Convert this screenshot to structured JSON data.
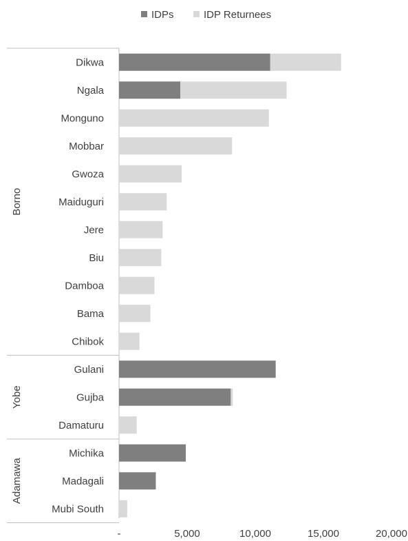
{
  "chart_data": {
    "type": "bar",
    "orientation": "horizontal",
    "stacked": true,
    "categories": [
      "Dikwa",
      "Ngala",
      "Monguno",
      "Mobbar",
      "Gwoza",
      "Maiduguri",
      "Jere",
      "Biu",
      "Damboa",
      "Bama",
      "Chibok",
      "Gulani",
      "Gujba",
      "Damaturu",
      "Michika",
      "Madagali",
      "Mubi South"
    ],
    "groups": [
      {
        "name": "Borno",
        "count": 11
      },
      {
        "name": "Yobe",
        "count": 3
      },
      {
        "name": "Adamawa",
        "count": 3
      }
    ],
    "series": [
      {
        "name": "IDPs",
        "color": "#7f7f7f",
        "values": [
          11100,
          4500,
          0,
          0,
          0,
          0,
          0,
          0,
          0,
          0,
          0,
          11500,
          8200,
          0,
          4900,
          2700,
          0
        ]
      },
      {
        "name": "IDP Returnees",
        "color": "#d9d9d9",
        "values": [
          5200,
          7800,
          11000,
          8300,
          4600,
          3500,
          3200,
          3100,
          2600,
          2300,
          1500,
          0,
          150,
          1300,
          0,
          0,
          600
        ]
      }
    ],
    "xlim": [
      0,
      20000
    ],
    "xticks": [
      "-",
      "5,000",
      "10,000",
      "15,000",
      "20,000"
    ],
    "xtick_values": [
      0,
      5000,
      10000,
      15000,
      20000
    ],
    "legend_position": "top",
    "grid": false
  }
}
